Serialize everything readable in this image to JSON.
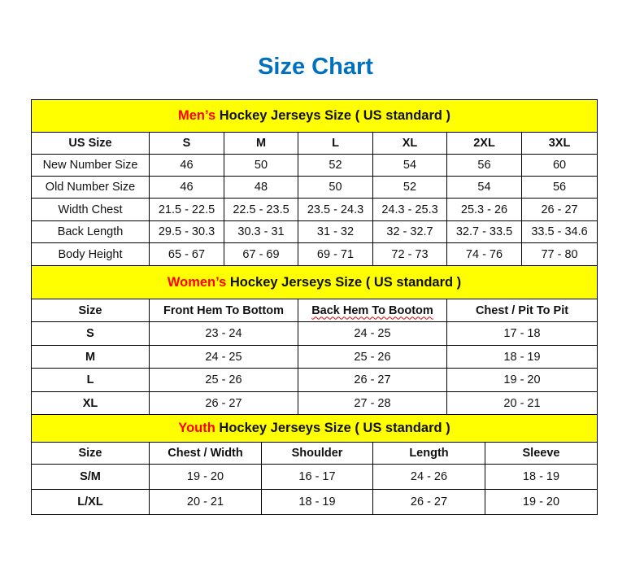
{
  "title": "Size Chart",
  "colors": {
    "title": "#0070C0",
    "band": "#FFFF00",
    "highlight": "#FF0000"
  },
  "sections": [
    {
      "highlight": "Men’s",
      "heading": " Hockey Jerseys Size ( US standard )",
      "columns": [
        "US Size",
        "S",
        "M",
        "L",
        "XL",
        "2XL",
        "3XL"
      ],
      "rows": [
        [
          "New Number Size",
          "46",
          "50",
          "52",
          "54",
          "56",
          "60"
        ],
        [
          "Old Number Size",
          "46",
          "48",
          "50",
          "52",
          "54",
          "56"
        ],
        [
          "Width Chest",
          "21.5 - 22.5",
          "22.5 - 23.5",
          "23.5 - 24.3",
          "24.3 - 25.3",
          "25.3 - 26",
          "26 - 27"
        ],
        [
          "Back Length",
          "29.5 - 30.3",
          "30.3 - 31",
          "31 - 32",
          "32 - 32.7",
          "32.7 - 33.5",
          "33.5 - 34.6"
        ],
        [
          "Body Height",
          "65 - 67",
          "67 - 69",
          "69 - 71",
          "72 - 73",
          "74 - 76",
          "77 - 80"
        ]
      ]
    },
    {
      "highlight": "Women’s",
      "heading": " Hockey Jerseys Size ( US standard )",
      "columns": [
        "Size",
        "Front Hem To Bottom",
        "Back Hem To Bootom",
        "Chest / Pit To Pit"
      ],
      "rows": [
        [
          "S",
          "23 - 24",
          "24 - 25",
          "17 - 18"
        ],
        [
          "M",
          "24 - 25",
          "25 - 26",
          "18 - 19"
        ],
        [
          "L",
          "25 - 26",
          "26 - 27",
          "19 - 20"
        ],
        [
          "XL",
          "26 - 27",
          "27 - 28",
          "20 - 21"
        ]
      ]
    },
    {
      "highlight": "Youth",
      "heading": " Hockey Jerseys Size ( US standard )",
      "columns": [
        "Size",
        "Chest / Width",
        "Shoulder",
        "Length",
        "Sleeve"
      ],
      "rows": [
        [
          "S/M",
          "19 - 20",
          "16 - 17",
          "24 - 26",
          "18 - 19"
        ],
        [
          "L/XL",
          "20 - 21",
          "18 - 19",
          "26 - 27",
          "19 - 20"
        ]
      ]
    }
  ]
}
